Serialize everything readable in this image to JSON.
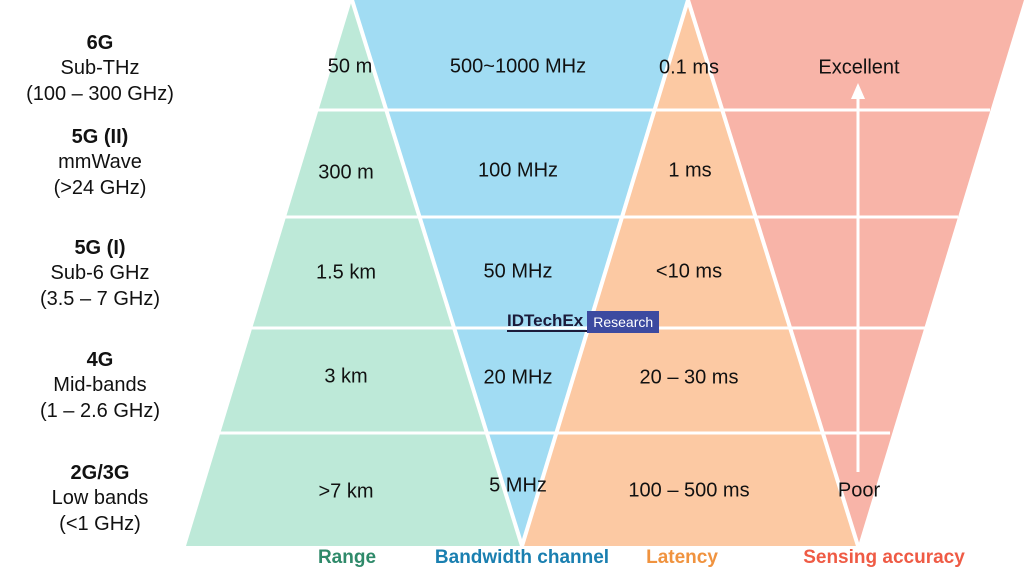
{
  "rows": [
    {
      "gen": "6G",
      "band": "Sub-THz",
      "freq": "(100 – 300 GHz)",
      "range": "50 m",
      "bandwidth": "500~1000 MHz",
      "latency": "0.1 ms"
    },
    {
      "gen": "5G (II)",
      "band": "mmWave",
      "freq": "(>24 GHz)",
      "range": "300 m",
      "bandwidth": "100 MHz",
      "latency": "1 ms"
    },
    {
      "gen": "5G (I)",
      "band": "Sub-6 GHz",
      "freq": "(3.5 – 7 GHz)",
      "range": "1.5 km",
      "bandwidth": "50 MHz",
      "latency": "<10 ms"
    },
    {
      "gen": "4G",
      "band": "Mid-bands",
      "freq": "(1 – 2.6 GHz)",
      "range": "3 km",
      "bandwidth": "20 MHz",
      "latency": "20 – 30 ms"
    },
    {
      "gen": "2G/3G",
      "band": "Low bands",
      "freq": "(<1 GHz)",
      "range": ">7 km",
      "bandwidth": "5 MHz",
      "latency": "100 – 500 ms"
    }
  ],
  "sensing": {
    "top": "Excellent",
    "bottom": "Poor"
  },
  "legend": {
    "range": "Range",
    "bandwidth": "Bandwidth channel",
    "latency": "Latency",
    "sensing": "Sensing accuracy"
  },
  "watermark": {
    "brand": "IDTechEx",
    "tag": "Research"
  },
  "colors": {
    "range": "#bde9d8",
    "bandwidth": "#a1dcf3",
    "latency": "#fcc9a3",
    "sensing": "#f8b4a8",
    "range_text": "#2f8a6a",
    "bandwidth_text": "#1a7fb0",
    "latency_text": "#f0933f",
    "sensing_text": "#ef5b45"
  }
}
